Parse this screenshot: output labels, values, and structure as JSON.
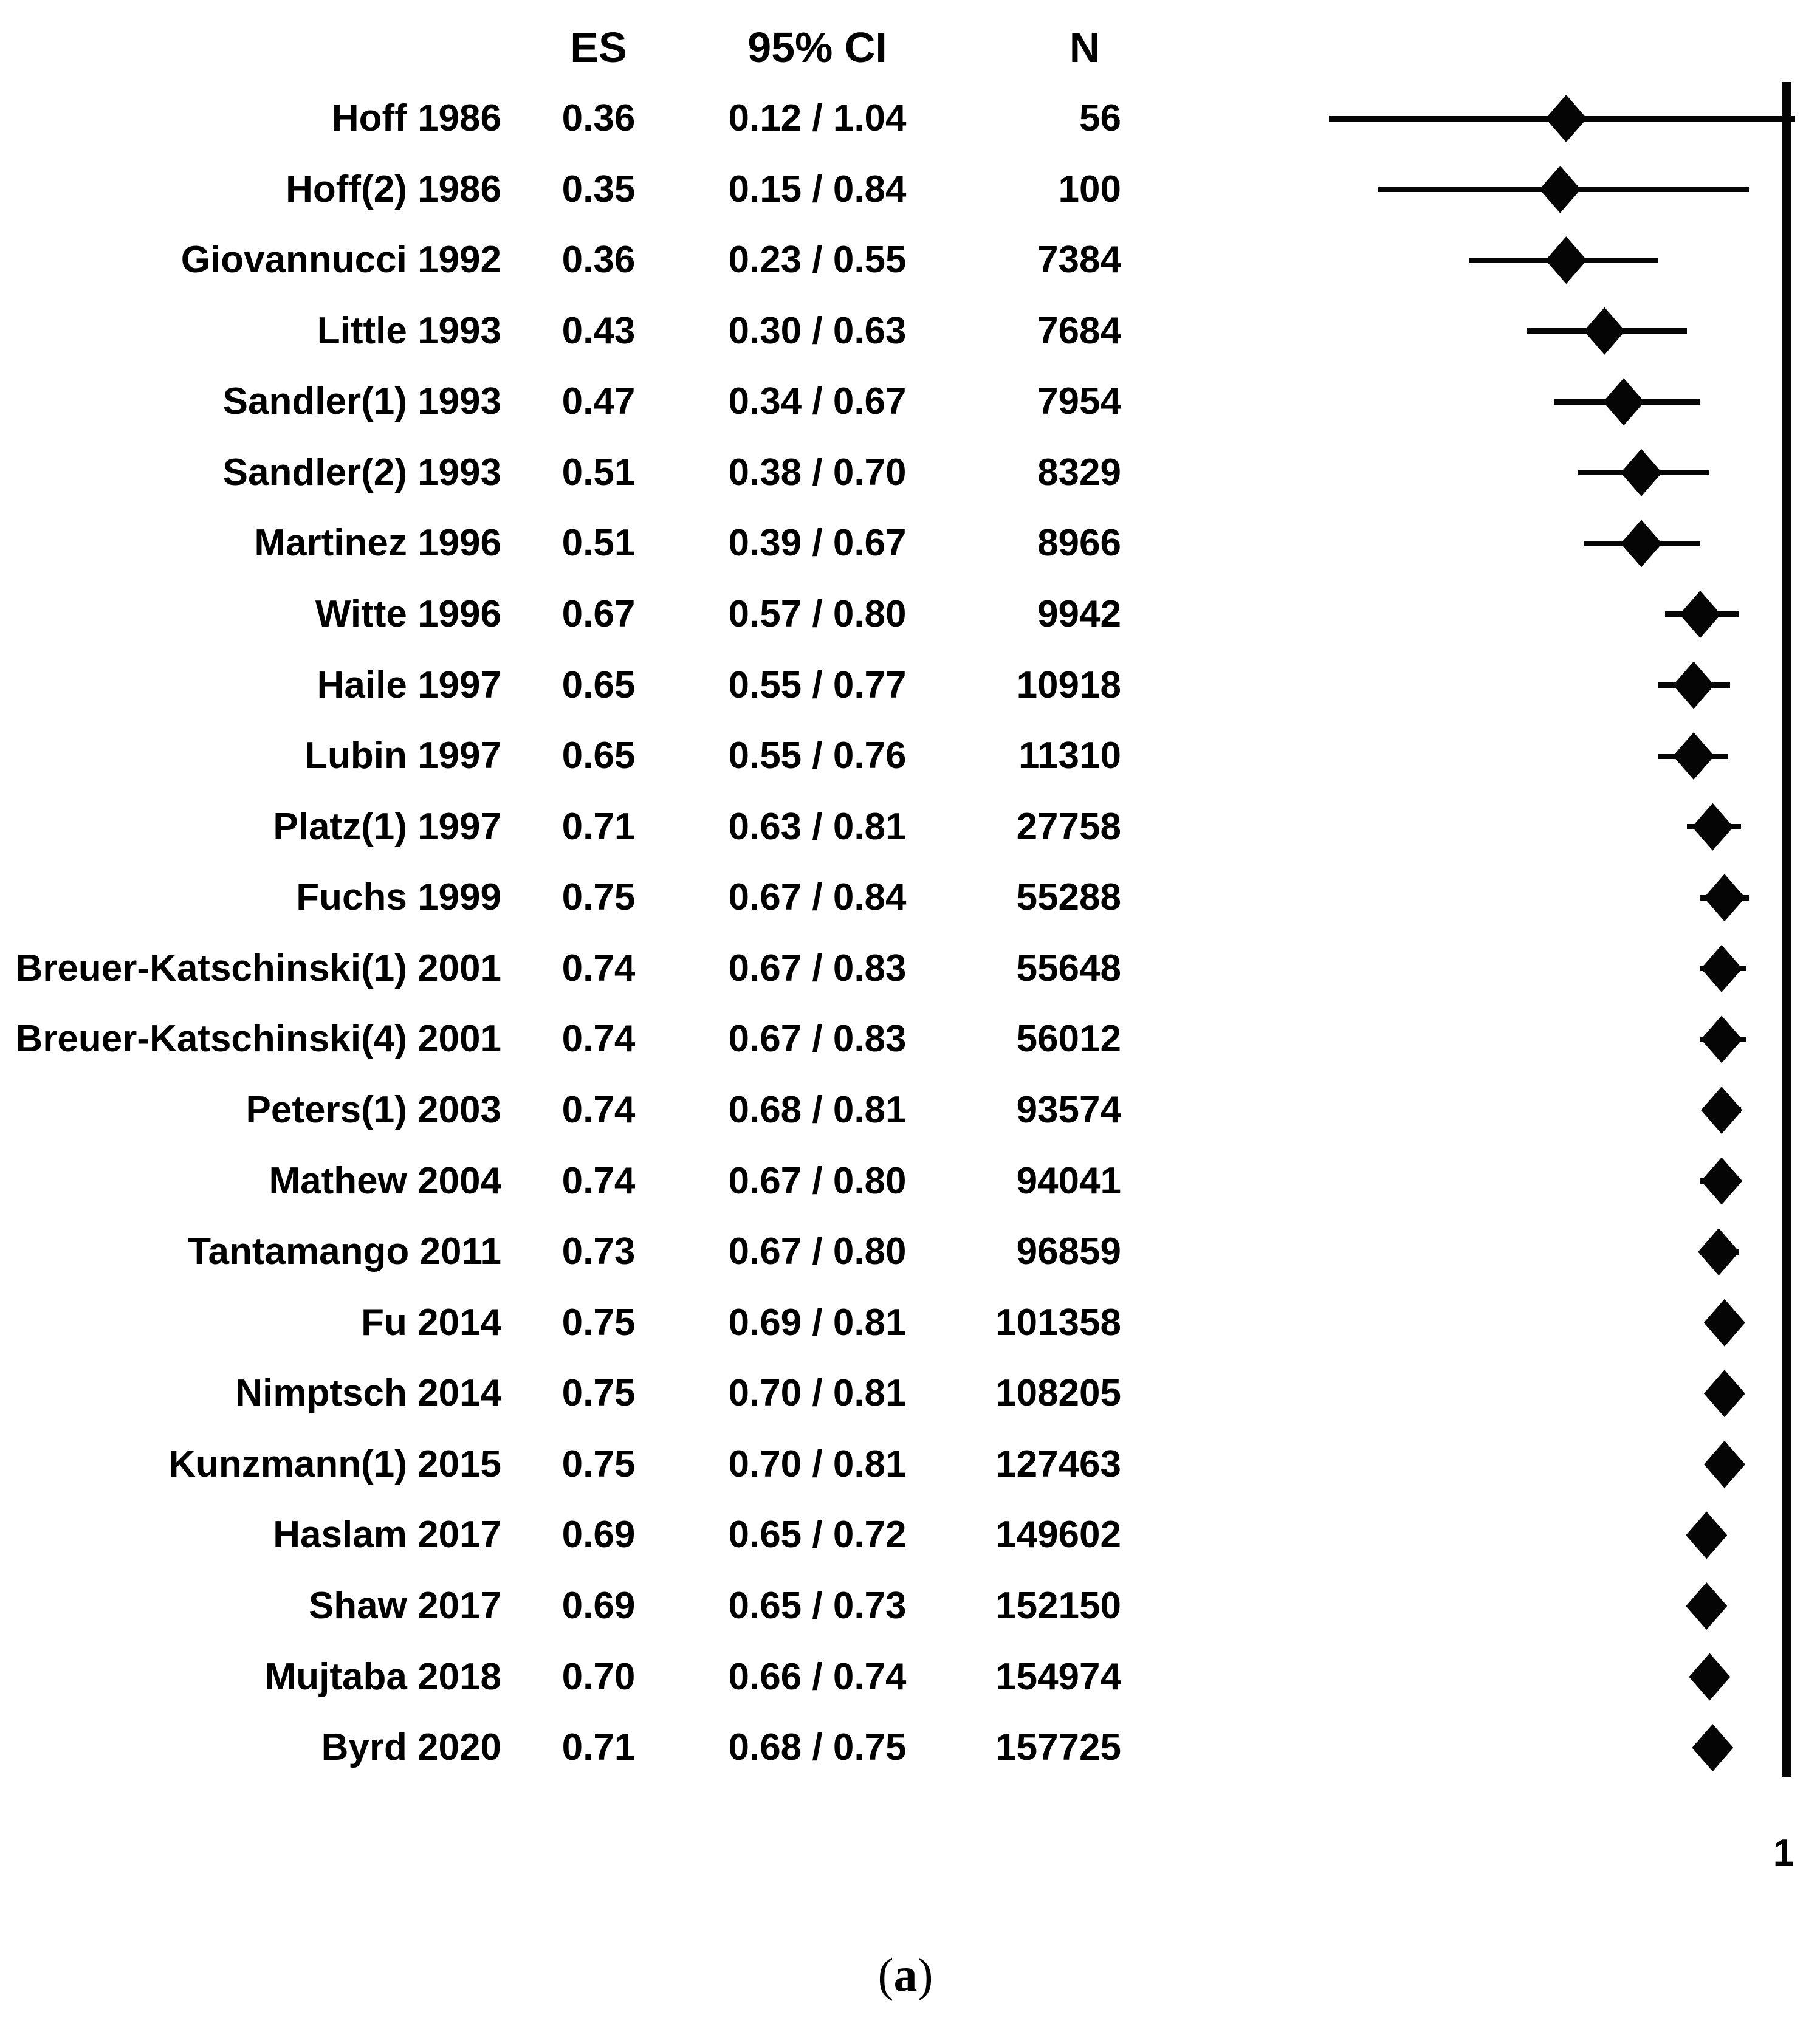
{
  "caption": {
    "open": "(",
    "letter": "a",
    "close": ")"
  },
  "chart_data": {
    "type": "forest",
    "title": "",
    "columns": {
      "es": "ES",
      "ci": "95% CI",
      "n": "N"
    },
    "axis": {
      "scale": "log",
      "ref_value": 1,
      "ref_tick_label": "1",
      "x_min": 0.12,
      "x_max": 1.04,
      "grid": false
    },
    "rows": [
      {
        "study": "Hoff 1986",
        "es": 0.36,
        "lo": 0.12,
        "hi": 1.04,
        "n": 56,
        "es_text": "0.36",
        "ci_text": "0.12 / 1.04",
        "n_text": "56"
      },
      {
        "study": "Hoff(2) 1986",
        "es": 0.35,
        "lo": 0.15,
        "hi": 0.84,
        "n": 100,
        "es_text": "0.35",
        "ci_text": "0.15 / 0.84",
        "n_text": "100"
      },
      {
        "study": "Giovannucci 1992",
        "es": 0.36,
        "lo": 0.23,
        "hi": 0.55,
        "n": 7384,
        "es_text": "0.36",
        "ci_text": "0.23 / 0.55",
        "n_text": "7384"
      },
      {
        "study": "Little 1993",
        "es": 0.43,
        "lo": 0.3,
        "hi": 0.63,
        "n": 7684,
        "es_text": "0.43",
        "ci_text": "0.30 / 0.63",
        "n_text": "7684"
      },
      {
        "study": "Sandler(1) 1993",
        "es": 0.47,
        "lo": 0.34,
        "hi": 0.67,
        "n": 7954,
        "es_text": "0.47",
        "ci_text": "0.34 / 0.67",
        "n_text": "7954"
      },
      {
        "study": "Sandler(2) 1993",
        "es": 0.51,
        "lo": 0.38,
        "hi": 0.7,
        "n": 8329,
        "es_text": "0.51",
        "ci_text": "0.38 / 0.70",
        "n_text": "8329"
      },
      {
        "study": "Martinez 1996",
        "es": 0.51,
        "lo": 0.39,
        "hi": 0.67,
        "n": 8966,
        "es_text": "0.51",
        "ci_text": "0.39 / 0.67",
        "n_text": "8966"
      },
      {
        "study": "Witte 1996",
        "es": 0.67,
        "lo": 0.57,
        "hi": 0.8,
        "n": 9942,
        "es_text": "0.67",
        "ci_text": "0.57 / 0.80",
        "n_text": "9942"
      },
      {
        "study": "Haile 1997",
        "es": 0.65,
        "lo": 0.55,
        "hi": 0.77,
        "n": 10918,
        "es_text": "0.65",
        "ci_text": "0.55 / 0.77",
        "n_text": "10918"
      },
      {
        "study": "Lubin 1997",
        "es": 0.65,
        "lo": 0.55,
        "hi": 0.76,
        "n": 11310,
        "es_text": "0.65",
        "ci_text": "0.55 / 0.76",
        "n_text": "11310"
      },
      {
        "study": "Platz(1) 1997",
        "es": 0.71,
        "lo": 0.63,
        "hi": 0.81,
        "n": 27758,
        "es_text": "0.71",
        "ci_text": "0.63 / 0.81",
        "n_text": "27758"
      },
      {
        "study": "Fuchs 1999",
        "es": 0.75,
        "lo": 0.67,
        "hi": 0.84,
        "n": 55288,
        "es_text": "0.75",
        "ci_text": "0.67 / 0.84",
        "n_text": "55288"
      },
      {
        "study": "Breuer-Katschinski(1) 2001",
        "es": 0.74,
        "lo": 0.67,
        "hi": 0.83,
        "n": 55648,
        "es_text": "0.74",
        "ci_text": "0.67 / 0.83",
        "n_text": "55648"
      },
      {
        "study": "Breuer-Katschinski(4) 2001",
        "es": 0.74,
        "lo": 0.67,
        "hi": 0.83,
        "n": 56012,
        "es_text": "0.74",
        "ci_text": "0.67 / 0.83",
        "n_text": "56012"
      },
      {
        "study": "Peters(1) 2003",
        "es": 0.74,
        "lo": 0.68,
        "hi": 0.81,
        "n": 93574,
        "es_text": "0.74",
        "ci_text": "0.68 / 0.81",
        "n_text": "93574"
      },
      {
        "study": "Mathew 2004",
        "es": 0.74,
        "lo": 0.67,
        "hi": 0.8,
        "n": 94041,
        "es_text": "0.74",
        "ci_text": "0.67 / 0.80",
        "n_text": "94041"
      },
      {
        "study": "Tantamango 2011",
        "es": 0.73,
        "lo": 0.67,
        "hi": 0.8,
        "n": 96859,
        "es_text": "0.73",
        "ci_text": "0.67 / 0.80",
        "n_text": "96859"
      },
      {
        "study": "Fu 2014",
        "es": 0.75,
        "lo": 0.69,
        "hi": 0.81,
        "n": 101358,
        "es_text": "0.75",
        "ci_text": "0.69 / 0.81",
        "n_text": "101358"
      },
      {
        "study": "Nimptsch 2014",
        "es": 0.75,
        "lo": 0.7,
        "hi": 0.81,
        "n": 108205,
        "es_text": "0.75",
        "ci_text": "0.70 / 0.81",
        "n_text": "108205"
      },
      {
        "study": "Kunzmann(1) 2015",
        "es": 0.75,
        "lo": 0.7,
        "hi": 0.81,
        "n": 127463,
        "es_text": "0.75",
        "ci_text": "0.70 / 0.81",
        "n_text": "127463"
      },
      {
        "study": "Haslam 2017",
        "es": 0.69,
        "lo": 0.65,
        "hi": 0.72,
        "n": 149602,
        "es_text": "0.69",
        "ci_text": "0.65 / 0.72",
        "n_text": "149602"
      },
      {
        "study": "Shaw 2017",
        "es": 0.69,
        "lo": 0.65,
        "hi": 0.73,
        "n": 152150,
        "es_text": "0.69",
        "ci_text": "0.65 / 0.73",
        "n_text": "152150"
      },
      {
        "study": "Mujtaba 2018",
        "es": 0.7,
        "lo": 0.66,
        "hi": 0.74,
        "n": 154974,
        "es_text": "0.70",
        "ci_text": "0.66 / 0.74",
        "n_text": "154974"
      },
      {
        "study": "Byrd 2020",
        "es": 0.71,
        "lo": 0.68,
        "hi": 0.75,
        "n": 157725,
        "es_text": "0.71",
        "ci_text": "0.68 / 0.75",
        "n_text": "157725"
      }
    ]
  }
}
